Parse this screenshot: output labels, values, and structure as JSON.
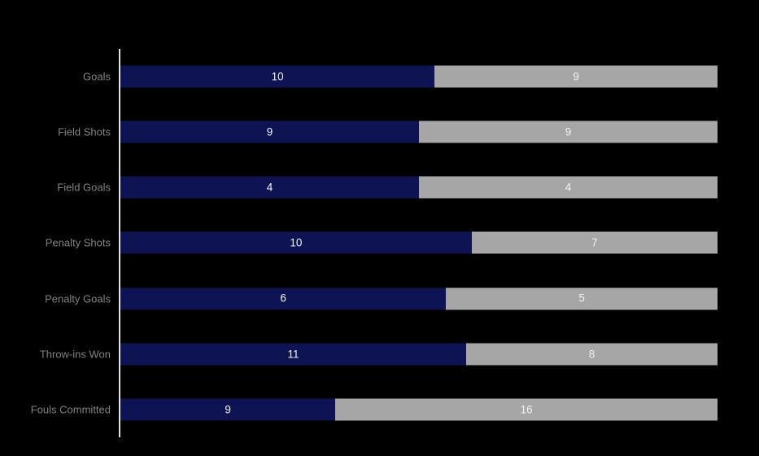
{
  "chart_data": {
    "type": "bar",
    "orientation": "horizontal",
    "stacked": true,
    "percent_stacked": true,
    "title": "",
    "xlabel": "",
    "ylabel": "",
    "legend": "none",
    "grid": false,
    "background_color": "#000000",
    "axis_line_color": "#E2E2E2",
    "category_label_color": "#808080",
    "value_label_color": "#F2F2F2",
    "categories": [
      "Goals",
      "Field Shots",
      "Field Goals",
      "Penalty Shots",
      "Penalty Goals",
      "Throw-ins Won",
      "Fouls Committed"
    ],
    "series": [
      {
        "name": "navy",
        "color": "#0E1354",
        "values": [
          10,
          9,
          4,
          10,
          6,
          11,
          9
        ]
      },
      {
        "name": "gray",
        "color": "#A6A6A6",
        "values": [
          9,
          9,
          4,
          7,
          5,
          8,
          16
        ]
      }
    ]
  },
  "layout_values": {
    "plot_top": 60,
    "row_height": 68.14
  }
}
